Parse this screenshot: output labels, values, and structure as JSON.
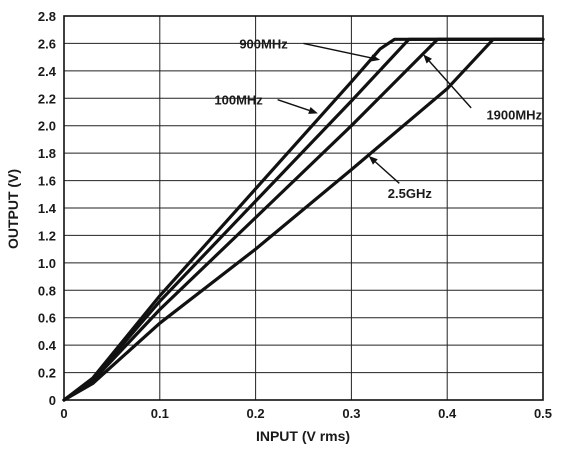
{
  "chart_data": {
    "type": "line",
    "xlabel": "INPUT (V rms)",
    "ylabel": "OUTPUT (V)",
    "xlim": [
      0,
      0.5
    ],
    "ylim": [
      0,
      2.8
    ],
    "xticks": [
      "0",
      "0.1",
      "0.2",
      "0.3",
      "0.4",
      "0.5"
    ],
    "yticks": [
      "0",
      "0.2",
      "0.4",
      "0.6",
      "0.8",
      "1.0",
      "1.2",
      "1.4",
      "1.6",
      "1.8",
      "2.0",
      "2.2",
      "2.4",
      "2.6",
      "2.8"
    ],
    "grid": true,
    "series": [
      {
        "name": "100MHz",
        "x": [
          0,
          0.03,
          0.1,
          0.2,
          0.3,
          0.33,
          0.345,
          0.5
        ],
        "y": [
          0,
          0.16,
          0.76,
          1.54,
          2.32,
          2.56,
          2.63,
          2.63
        ]
      },
      {
        "name": "900MHz",
        "x": [
          0,
          0.03,
          0.1,
          0.2,
          0.3,
          0.36,
          0.5
        ],
        "y": [
          0,
          0.15,
          0.72,
          1.45,
          2.18,
          2.63,
          2.63
        ]
      },
      {
        "name": "1900MHz",
        "x": [
          0,
          0.03,
          0.1,
          0.2,
          0.3,
          0.39,
          0.5
        ],
        "y": [
          0,
          0.14,
          0.66,
          1.33,
          2.0,
          2.63,
          2.63
        ]
      },
      {
        "name": "2.5GHz",
        "x": [
          0,
          0.03,
          0.1,
          0.2,
          0.3,
          0.4,
          0.448,
          0.5
        ],
        "y": [
          0,
          0.12,
          0.56,
          1.1,
          1.68,
          2.27,
          2.63,
          2.63
        ]
      }
    ],
    "annotations": [
      {
        "text": "900MHz",
        "text_x": 0.183,
        "text_y": 2.6,
        "anchor": "start",
        "from_x": 0.25,
        "from_y": 2.6,
        "to_x": 0.33,
        "to_y": 2.48
      },
      {
        "text": "100MHz",
        "text_x": 0.157,
        "text_y": 2.19,
        "anchor": "start",
        "from_x": 0.223,
        "from_y": 2.19,
        "to_x": 0.265,
        "to_y": 2.09
      },
      {
        "text": "1900MHz",
        "text_x": 0.47,
        "text_y": 2.08,
        "anchor": "middle",
        "from_x": 0.425,
        "from_y": 2.13,
        "to_x": 0.375,
        "to_y": 2.52
      },
      {
        "text": "2.5GHz",
        "text_x": 0.338,
        "text_y": 1.51,
        "anchor": "start",
        "from_x": 0.35,
        "from_y": 1.58,
        "to_x": 0.318,
        "to_y": 1.78
      }
    ]
  }
}
